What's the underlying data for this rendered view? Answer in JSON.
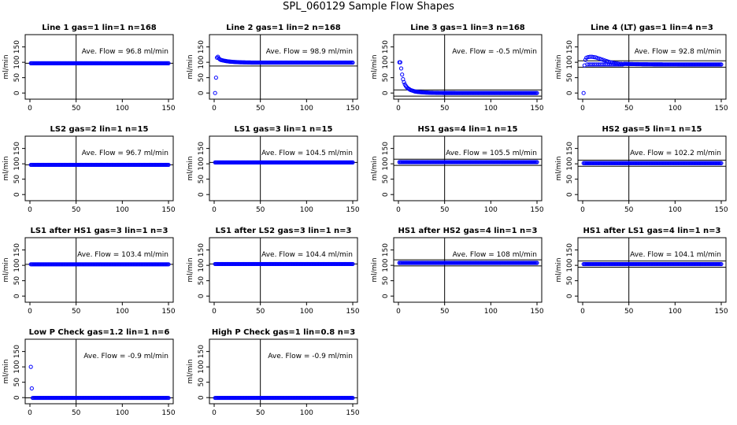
{
  "title": "SPL_060129  Sample Flow Shapes",
  "colors": {
    "points": "#0000ff",
    "axes": "#000000"
  },
  "chart_data": [
    {
      "type": "scatter",
      "title": "Line 1 gas=1 lin=1 n=168",
      "ylabel": "ml/min",
      "annotation": "Ave. Flow =  96.8  ml/min",
      "xlim": [
        0,
        150
      ],
      "ylim": [
        -20,
        190
      ],
      "xticks": [
        0,
        50,
        100,
        150
      ],
      "yticks": [
        0,
        50,
        100,
        150
      ],
      "vline": 50,
      "hlines": [
        96.8
      ],
      "shape": "flat",
      "level": 96.8
    },
    {
      "type": "scatter",
      "title": "Line 2 gas=1 lin=2 n=168",
      "ylabel": "ml/min",
      "annotation": "Ave. Flow =  98.9  ml/min",
      "xlim": [
        0,
        150
      ],
      "ylim": [
        -20,
        190
      ],
      "xticks": [
        0,
        50,
        100,
        150
      ],
      "yticks": [
        0,
        50,
        100,
        150
      ],
      "vline": 50,
      "hlines": [
        88
      ],
      "shape": "rise_overshoot",
      "level": 99,
      "early_points": [
        [
          1,
          0
        ],
        [
          2,
          50
        ],
        [
          3,
          115
        ],
        [
          4,
          118
        ],
        [
          5,
          113
        ],
        [
          6,
          110
        ],
        [
          7,
          108
        ]
      ]
    },
    {
      "type": "scatter",
      "title": "Line 3 gas=1 lin=3 n=168",
      "ylabel": "ml/min",
      "annotation": "Ave. Flow =  -0.5  ml/min",
      "xlim": [
        0,
        150
      ],
      "ylim": [
        -20,
        190
      ],
      "xticks": [
        0,
        50,
        100,
        150
      ],
      "yticks": [
        0,
        50,
        100,
        150
      ],
      "vline": 50,
      "hlines": [
        -10,
        10
      ],
      "shape": "decay",
      "level": 0,
      "early_points": [
        [
          1,
          100
        ],
        [
          2,
          100
        ],
        [
          3,
          80
        ],
        [
          4,
          60
        ],
        [
          5,
          45
        ],
        [
          6,
          35
        ],
        [
          7,
          28
        ],
        [
          8,
          23
        ],
        [
          9,
          19
        ],
        [
          10,
          16
        ],
        [
          11,
          14
        ],
        [
          12,
          12
        ],
        [
          13,
          10
        ],
        [
          14,
          9
        ],
        [
          15,
          8
        ],
        [
          16,
          7
        ],
        [
          17,
          6
        ],
        [
          18,
          5
        ]
      ]
    },
    {
      "type": "scatter",
      "title": "Line 4 (LT) gas=1 lin=4 n=3",
      "ylabel": "ml/min",
      "annotation": "Ave. Flow =  92.8  ml/min",
      "xlim": [
        0,
        150
      ],
      "ylim": [
        -20,
        190
      ],
      "xticks": [
        0,
        50,
        100,
        150
      ],
      "yticks": [
        0,
        50,
        100,
        150
      ],
      "vline": 50,
      "hlines": [
        105,
        84
      ],
      "shape": "rise_hump",
      "level": 93,
      "early_points": [
        [
          1,
          0
        ],
        [
          2,
          90
        ],
        [
          3,
          108
        ],
        [
          4,
          115
        ],
        [
          6,
          117
        ],
        [
          8,
          118
        ],
        [
          10,
          118
        ],
        [
          12,
          117
        ],
        [
          14,
          116
        ],
        [
          16,
          114
        ],
        [
          18,
          112
        ],
        [
          20,
          110
        ],
        [
          22,
          108
        ],
        [
          24,
          106
        ],
        [
          26,
          104
        ],
        [
          28,
          102
        ],
        [
          30,
          100
        ],
        [
          32,
          99
        ],
        [
          34,
          98
        ],
        [
          36,
          97
        ],
        [
          38,
          96
        ],
        [
          40,
          95
        ],
        [
          42,
          95
        ],
        [
          44,
          94
        ]
      ]
    },
    {
      "type": "scatter",
      "title": "LS2 gas=2 lin=1 n=15",
      "ylabel": "ml/min",
      "annotation": "Ave. Flow =  96.7  ml/min",
      "xlim": [
        0,
        150
      ],
      "ylim": [
        -20,
        190
      ],
      "xticks": [
        0,
        50,
        100,
        150
      ],
      "yticks": [
        0,
        50,
        100,
        150
      ],
      "vline": 50,
      "hlines": [
        96.7
      ],
      "shape": "flat",
      "level": 96.7
    },
    {
      "type": "scatter",
      "title": "LS1 gas=3 lin=1 n=15",
      "ylabel": "ml/min",
      "annotation": "Ave. Flow =  104.5  ml/min",
      "xlim": [
        0,
        150
      ],
      "ylim": [
        -20,
        190
      ],
      "xticks": [
        0,
        50,
        100,
        150
      ],
      "yticks": [
        0,
        50,
        100,
        150
      ],
      "vline": 50,
      "hlines": [
        104.5
      ],
      "shape": "flat",
      "level": 104.5
    },
    {
      "type": "scatter",
      "title": "HS1 gas=4 lin=1 n=15",
      "ylabel": "ml/min",
      "annotation": "Ave. Flow =  105.5  ml/min",
      "xlim": [
        0,
        150
      ],
      "ylim": [
        -20,
        190
      ],
      "xticks": [
        0,
        50,
        100,
        150
      ],
      "yticks": [
        0,
        50,
        100,
        150
      ],
      "vline": 50,
      "hlines": [
        115,
        95
      ],
      "shape": "flat",
      "level": 105.5
    },
    {
      "type": "scatter",
      "title": "HS2 gas=5 lin=1 n=15",
      "ylabel": "ml/min",
      "annotation": "Ave. Flow =  102.2  ml/min",
      "xlim": [
        0,
        150
      ],
      "ylim": [
        -20,
        190
      ],
      "xticks": [
        0,
        50,
        100,
        150
      ],
      "yticks": [
        0,
        50,
        100,
        150
      ],
      "vline": 50,
      "hlines": [
        112,
        92
      ],
      "shape": "flat",
      "level": 102.2
    },
    {
      "type": "scatter",
      "title": "LS1 after HS1 gas=3 lin=1 n=3",
      "ylabel": "ml/min",
      "annotation": "Ave. Flow =  103.4  ml/min",
      "xlim": [
        0,
        150
      ],
      "ylim": [
        -20,
        190
      ],
      "xticks": [
        0,
        50,
        100,
        150
      ],
      "yticks": [
        0,
        50,
        100,
        150
      ],
      "vline": 50,
      "hlines": [
        103.4
      ],
      "shape": "flat",
      "level": 103.4
    },
    {
      "type": "scatter",
      "title": "LS1 after LS2 gas=3 lin=1 n=3",
      "ylabel": "ml/min",
      "annotation": "Ave. Flow =  104.4  ml/min",
      "xlim": [
        0,
        150
      ],
      "ylim": [
        -20,
        190
      ],
      "xticks": [
        0,
        50,
        100,
        150
      ],
      "yticks": [
        0,
        50,
        100,
        150
      ],
      "vline": 50,
      "hlines": [
        104.4
      ],
      "shape": "flat",
      "level": 104.4
    },
    {
      "type": "scatter",
      "title": "HS1 after HS2 gas=4 lin=1 n=3",
      "ylabel": "ml/min",
      "annotation": "Ave. Flow =  108  ml/min",
      "xlim": [
        0,
        150
      ],
      "ylim": [
        -20,
        190
      ],
      "xticks": [
        0,
        50,
        100,
        150
      ],
      "yticks": [
        0,
        50,
        100,
        150
      ],
      "vline": 50,
      "hlines": [
        118,
        98
      ],
      "shape": "flat",
      "level": 108
    },
    {
      "type": "scatter",
      "title": "HS1 after LS1 gas=4 lin=1 n=3",
      "ylabel": "ml/min",
      "annotation": "Ave. Flow =  104.1  ml/min",
      "xlim": [
        0,
        150
      ],
      "ylim": [
        -20,
        190
      ],
      "xticks": [
        0,
        50,
        100,
        150
      ],
      "yticks": [
        0,
        50,
        100,
        150
      ],
      "vline": 50,
      "hlines": [
        114,
        94
      ],
      "shape": "flat",
      "level": 104.1
    },
    {
      "type": "scatter",
      "title": "Low P Check gas=1.2 lin=1 n=6",
      "ylabel": "ml/min",
      "annotation": "Ave. Flow =  -0.9  ml/min",
      "xlim": [
        0,
        150
      ],
      "ylim": [
        -20,
        190
      ],
      "xticks": [
        0,
        50,
        100,
        150
      ],
      "yticks": [
        0,
        50,
        100,
        150
      ],
      "vline": 50,
      "hlines": [
        -0.9
      ],
      "shape": "flat",
      "level": -0.9,
      "early_points": [
        [
          1,
          100
        ],
        [
          2,
          30
        ]
      ]
    },
    {
      "type": "scatter",
      "title": "High P Check gas=1 lin=0.8 n=3",
      "ylabel": "ml/min",
      "annotation": "Ave. Flow =  -0.9  ml/min",
      "xlim": [
        0,
        150
      ],
      "ylim": [
        -20,
        190
      ],
      "xticks": [
        0,
        50,
        100,
        150
      ],
      "yticks": [
        0,
        50,
        100,
        150
      ],
      "vline": 50,
      "hlines": [
        -0.9
      ],
      "shape": "flat",
      "level": -0.9
    }
  ]
}
